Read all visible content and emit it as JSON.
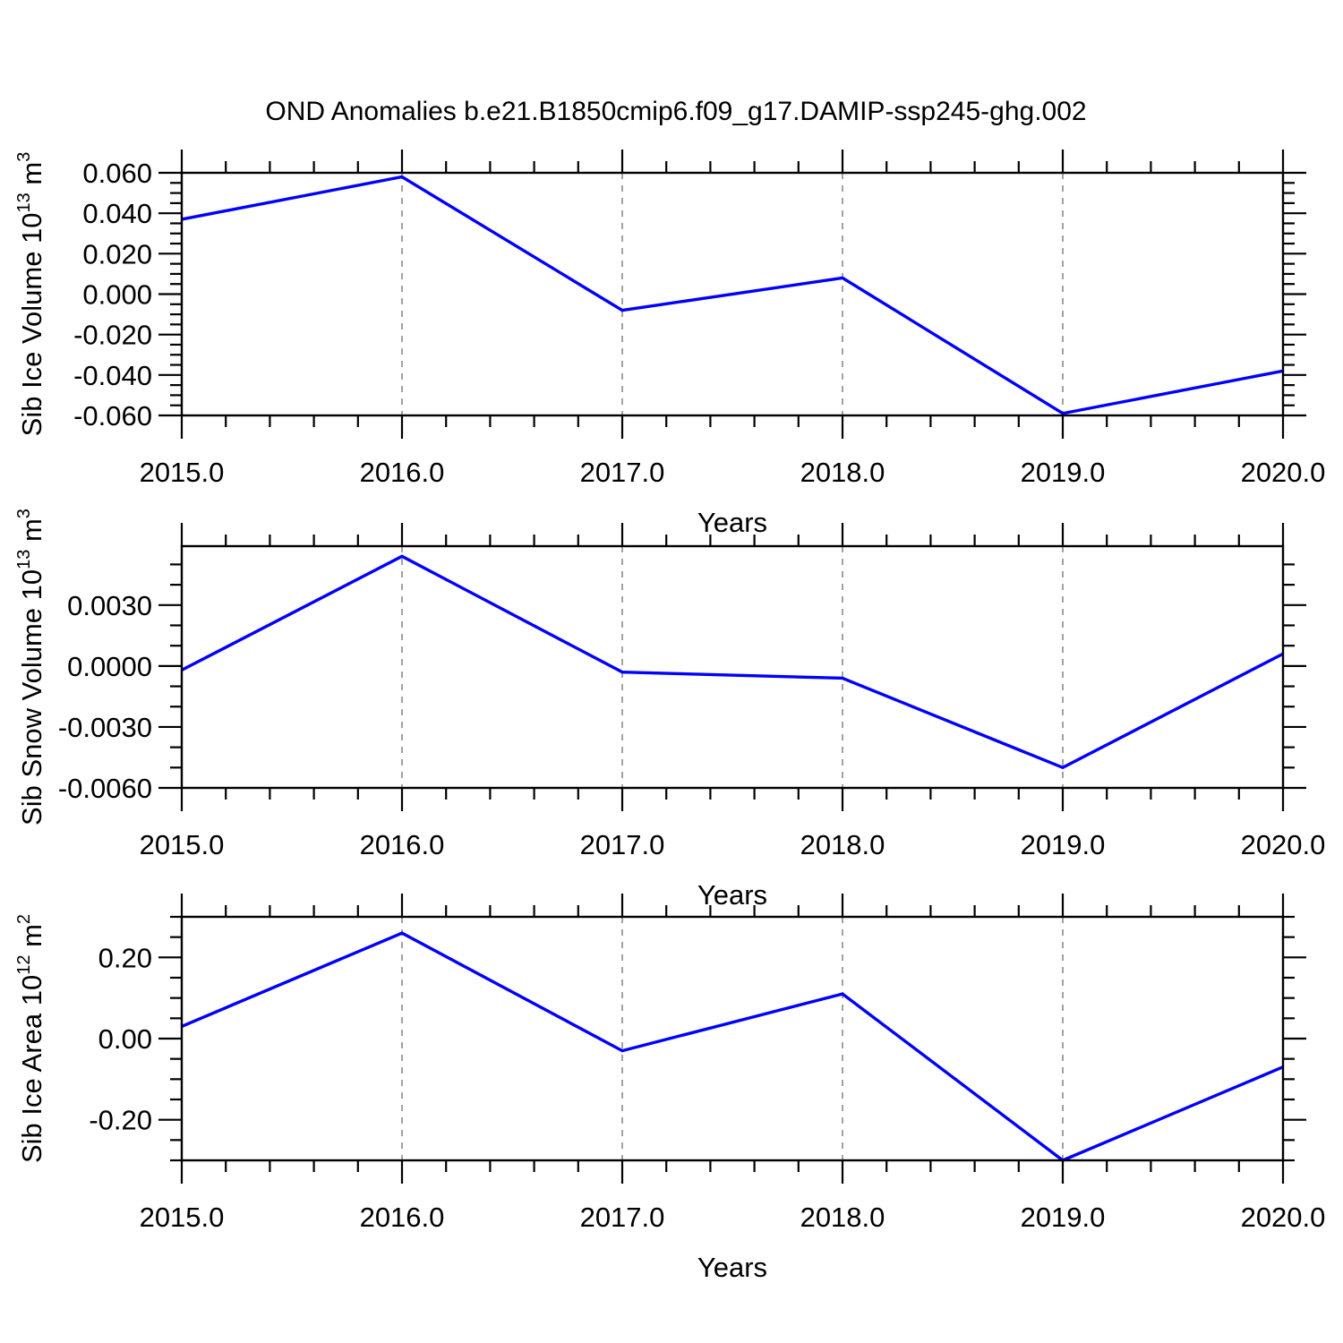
{
  "title": "OND Anomalies b.e21.B1850cmip6.f09_g17.DAMIP-ssp245-ghg.002",
  "colors": {
    "line": "#0000ff",
    "axis": "#000000",
    "grid": "#8a8a8a",
    "text": "#000000",
    "background": "#ffffff"
  },
  "x_axis": {
    "label": "Years",
    "min": 2015,
    "max": 2020,
    "major_step": 1,
    "minor_step": 0.2,
    "tick_labels": [
      "2015.0",
      "2016.0",
      "2017.0",
      "2018.0",
      "2019.0",
      "2020.0"
    ],
    "grid_years": [
      2016,
      2017,
      2018,
      2019
    ]
  },
  "chart_data": [
    {
      "type": "line",
      "name": "sib-ice-volume",
      "ylabel_parts": [
        {
          "t": "Sib Ice Volume 10"
        },
        {
          "t": "13",
          "sup": true
        },
        {
          "t": " m"
        },
        {
          "t": "3",
          "sup": true
        }
      ],
      "xlabel": "Years",
      "x": [
        2015,
        2016,
        2017,
        2018,
        2019,
        2020
      ],
      "values": [
        0.037,
        0.058,
        -0.008,
        0.008,
        -0.059,
        -0.038
      ],
      "ylim": [
        -0.06,
        0.06
      ],
      "y_major_ticks": [
        0.06,
        0.04,
        0.02,
        0,
        -0.02,
        -0.04,
        -0.06
      ],
      "y_tick_labels": [
        "0.060",
        "0.040",
        "0.020",
        "0.000",
        "-0.020",
        "-0.040",
        "-0.060"
      ],
      "y_major_step": 0.02,
      "y_minor_step": 0.005,
      "grid": true,
      "legend": "none"
    },
    {
      "type": "line",
      "name": "sib-snow-volume",
      "ylabel_parts": [
        {
          "t": "Sib Snow Volume 10"
        },
        {
          "t": "13",
          "sup": true
        },
        {
          "t": " m"
        },
        {
          "t": "3",
          "sup": true
        }
      ],
      "xlabel": "Years",
      "x": [
        2015,
        2016,
        2017,
        2018,
        2019,
        2020
      ],
      "values": [
        -0.0002,
        0.0054,
        -0.0003,
        -0.0006,
        -0.005,
        0.0006
      ],
      "ylim": [
        -0.006,
        0.0059
      ],
      "y_major_ticks": [
        0.003,
        0,
        -0.003,
        -0.006
      ],
      "y_tick_labels": [
        "0.0030",
        "0.0000",
        "-0.0030",
        "-0.0060"
      ],
      "y_major_step": 0.003,
      "y_minor_step": 0.001,
      "grid": true,
      "legend": "none"
    },
    {
      "type": "line",
      "name": "sib-ice-area",
      "ylabel_parts": [
        {
          "t": "Sib Ice Area 10"
        },
        {
          "t": "12",
          "sup": true
        },
        {
          "t": " m"
        },
        {
          "t": "2",
          "sup": true
        }
      ],
      "xlabel": "Years",
      "x": [
        2015,
        2016,
        2017,
        2018,
        2019,
        2020
      ],
      "values": [
        0.03,
        0.26,
        -0.03,
        0.11,
        -0.3,
        -0.07
      ],
      "ylim": [
        -0.3,
        0.3
      ],
      "y_major_ticks": [
        0.2,
        0,
        -0.2
      ],
      "y_tick_labels": [
        "0.20",
        "0.00",
        "-0.20"
      ],
      "y_major_step": 0.2,
      "y_minor_step": 0.05,
      "grid": true,
      "legend": "none"
    }
  ]
}
